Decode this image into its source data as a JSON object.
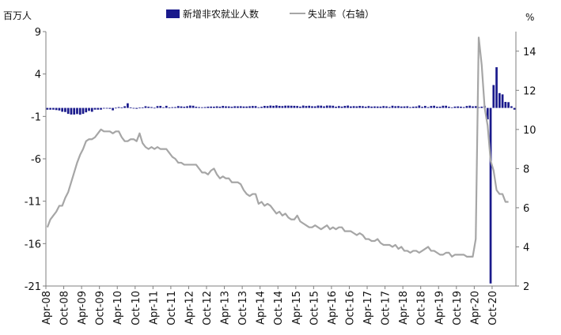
{
  "chart_data": {
    "type": "bar+line",
    "y_left_label": "百万人",
    "y_right_label": "%",
    "legend": [
      "新增非农就业人数",
      "失业率（右轴）"
    ],
    "y_left_ticks": [
      "9",
      "4",
      "-1",
      "-6",
      "-11",
      "-16",
      "-21"
    ],
    "y_right_ticks": [
      "14",
      "12",
      "10",
      "8",
      "6",
      "4",
      "2"
    ],
    "ylim_left": [
      -21,
      9
    ],
    "ylim_right": [
      2,
      15
    ],
    "x_tick_labels": [
      "Apr-08",
      "Oct-08",
      "Apr-09",
      "Oct-09",
      "Apr-10",
      "Oct-10",
      "Apr-11",
      "Oct-11",
      "Apr-12",
      "Oct-12",
      "Apr-13",
      "Oct-13",
      "Apr-14",
      "Oct-14",
      "Apr-15",
      "Oct-15",
      "Apr-16",
      "Oct-16",
      "Apr-17",
      "Oct-17",
      "Apr-18",
      "Oct-18",
      "Apr-19",
      "Oct-19",
      "Apr-20",
      "Oct-20"
    ],
    "x_start": "2008-04",
    "colors": {
      "bars": "#1a1a8c",
      "line": "#a6a6a6",
      "axis": "#7f7f7f"
    },
    "series": [
      {
        "name": "新增非农就业人数",
        "unit": "百万人",
        "axis": "left",
        "values": [
          -0.2,
          -0.2,
          -0.2,
          -0.25,
          -0.3,
          -0.45,
          -0.48,
          -0.7,
          -0.78,
          -0.78,
          -0.72,
          -0.8,
          -0.7,
          -0.52,
          -0.35,
          -0.45,
          -0.2,
          -0.2,
          -0.2,
          -0.05,
          -0.02,
          -0.1,
          -0.28,
          0.02,
          0.1,
          0.05,
          0.2,
          0.55,
          0.05,
          -0.01,
          -0.1,
          0.03,
          0.04,
          0.2,
          0.14,
          0.1,
          0.02,
          0.22,
          0.24,
          0.08,
          0.25,
          0.06,
          0.09,
          0.1,
          0.22,
          0.18,
          0.14,
          0.2,
          0.28,
          0.26,
          0.14,
          0.1,
          0.08,
          0.1,
          0.15,
          0.16,
          0.15,
          0.19,
          0.15,
          0.24,
          0.19,
          0.18,
          0.14,
          0.2,
          0.19,
          0.2,
          0.17,
          0.17,
          0.2,
          0.23,
          0.22,
          0.08,
          0.14,
          0.24,
          0.22,
          0.28,
          0.25,
          0.3,
          0.24,
          0.22,
          0.27,
          0.27,
          0.26,
          0.25,
          0.23,
          0.16,
          0.28,
          0.23,
          0.26,
          0.2,
          0.19,
          0.28,
          0.27,
          0.19,
          0.28,
          0.28,
          0.26,
          0.15,
          0.22,
          0.16,
          0.24,
          0.28,
          0.18,
          0.21,
          0.19,
          0.24,
          0.21,
          0.15,
          0.22,
          0.16,
          0.18,
          0.17,
          0.16,
          0.22,
          0.19,
          0.11,
          0.26,
          0.2,
          0.22,
          0.17,
          0.18,
          0.2,
          0.1,
          0.15,
          0.17,
          0.29,
          0.13,
          0.24,
          0.1,
          0.23,
          0.26,
          0.15,
          0.15,
          0.26,
          0.26,
          0.14,
          0.07,
          0.16,
          0.18,
          0.15,
          0.1,
          0.23,
          0.27,
          0.19,
          0.21,
          0.1,
          0.15,
          0.25,
          -1.35,
          -20.7,
          2.7,
          4.8,
          1.75,
          1.6,
          0.71,
          0.68,
          0.2,
          -0.2
        ]
      },
      {
        "name": "失业率（右轴）",
        "unit": "%",
        "axis": "right",
        "values": [
          5.0,
          5.4,
          5.6,
          5.8,
          6.1,
          6.1,
          6.5,
          6.8,
          7.3,
          7.8,
          8.3,
          8.7,
          9.0,
          9.4,
          9.5,
          9.5,
          9.6,
          9.8,
          10.0,
          9.9,
          9.9,
          9.9,
          9.8,
          9.9,
          9.9,
          9.6,
          9.4,
          9.4,
          9.5,
          9.5,
          9.4,
          9.8,
          9.3,
          9.1,
          9.0,
          9.1,
          9.0,
          9.1,
          9.0,
          9.0,
          9.0,
          8.8,
          8.6,
          8.5,
          8.3,
          8.3,
          8.2,
          8.2,
          8.2,
          8.2,
          8.2,
          8.0,
          7.8,
          7.8,
          7.7,
          7.9,
          8.0,
          7.7,
          7.5,
          7.6,
          7.5,
          7.5,
          7.3,
          7.3,
          7.3,
          7.2,
          6.9,
          6.7,
          6.6,
          6.7,
          6.7,
          6.2,
          6.3,
          6.1,
          6.2,
          6.1,
          5.9,
          5.7,
          5.8,
          5.6,
          5.7,
          5.5,
          5.4,
          5.4,
          5.6,
          5.3,
          5.2,
          5.1,
          5.0,
          5.0,
          5.1,
          5.0,
          4.9,
          5.0,
          5.1,
          4.9,
          5.0,
          4.9,
          5.0,
          5.0,
          4.8,
          4.8,
          4.8,
          4.7,
          4.6,
          4.7,
          4.6,
          4.4,
          4.4,
          4.3,
          4.3,
          4.4,
          4.2,
          4.1,
          4.1,
          4.1,
          4.0,
          4.1,
          3.9,
          4.0,
          3.8,
          3.8,
          3.7,
          3.8,
          3.8,
          3.7,
          3.8,
          3.9,
          4.0,
          3.8,
          3.8,
          3.7,
          3.6,
          3.6,
          3.7,
          3.7,
          3.5,
          3.6,
          3.6,
          3.6,
          3.6,
          3.5,
          3.5,
          3.5,
          4.4,
          14.7,
          13.3,
          11.1,
          10.2,
          8.4,
          7.9,
          6.9,
          6.7,
          6.7,
          6.3,
          6.3
        ]
      }
    ]
  }
}
